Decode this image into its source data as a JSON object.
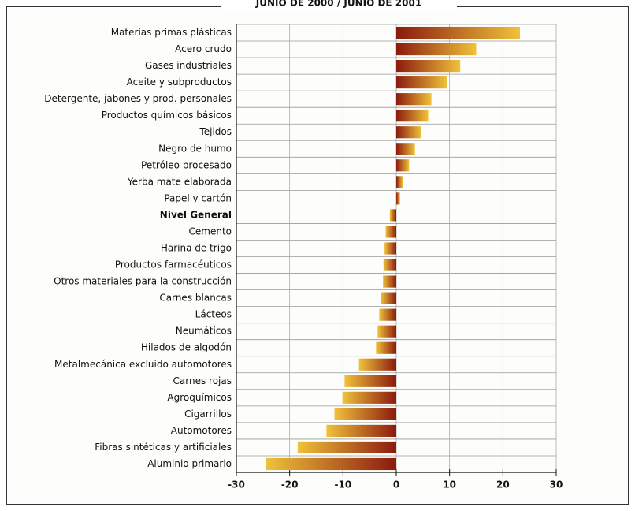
{
  "chart_data": {
    "type": "barh",
    "title": "JUNIO DE 2000 / JUNIO DE 2001",
    "categories": [
      "Materias primas plásticas",
      "Acero crudo",
      "Gases industriales",
      "Aceite y subproductos",
      "Detergente, jabones y prod. personales",
      "Productos químicos básicos",
      "Tejidos",
      "Negro de humo",
      "Petróleo procesado",
      "Yerba mate elaborada",
      "Papel y cartón",
      "Nivel General",
      "Cemento",
      "Harina de trigo",
      "Productos farmacéuticos",
      "Otros materiales para la construcción",
      "Carnes blancas",
      "Lácteos",
      "Neumáticos",
      "Hilados de algodón",
      "Metalmecánica excluido automotores",
      "Carnes rojas",
      "Agroquímicos",
      "Cigarrillos",
      "Automotores",
      "Fibras sintéticas y artificiales",
      "Aluminio primario"
    ],
    "values": [
      23.2,
      15,
      12,
      9.5,
      6.6,
      6,
      4.7,
      3.5,
      2.4,
      1.2,
      0.7,
      -1.2,
      -2,
      -2.2,
      -2.4,
      -2.5,
      -2.9,
      -3.2,
      -3.5,
      -3.8,
      -7,
      -9.7,
      -10.1,
      -11.6,
      -13.1,
      -18.5,
      -24.5
    ],
    "bold_categories": [
      11
    ],
    "colors": [
      "#8b1a0e",
      "#f0c23a"
    ],
    "xlim": [
      -30,
      30
    ],
    "xticks": [
      -30,
      -20,
      -10,
      0,
      10,
      20,
      30
    ],
    "grid": true
  }
}
